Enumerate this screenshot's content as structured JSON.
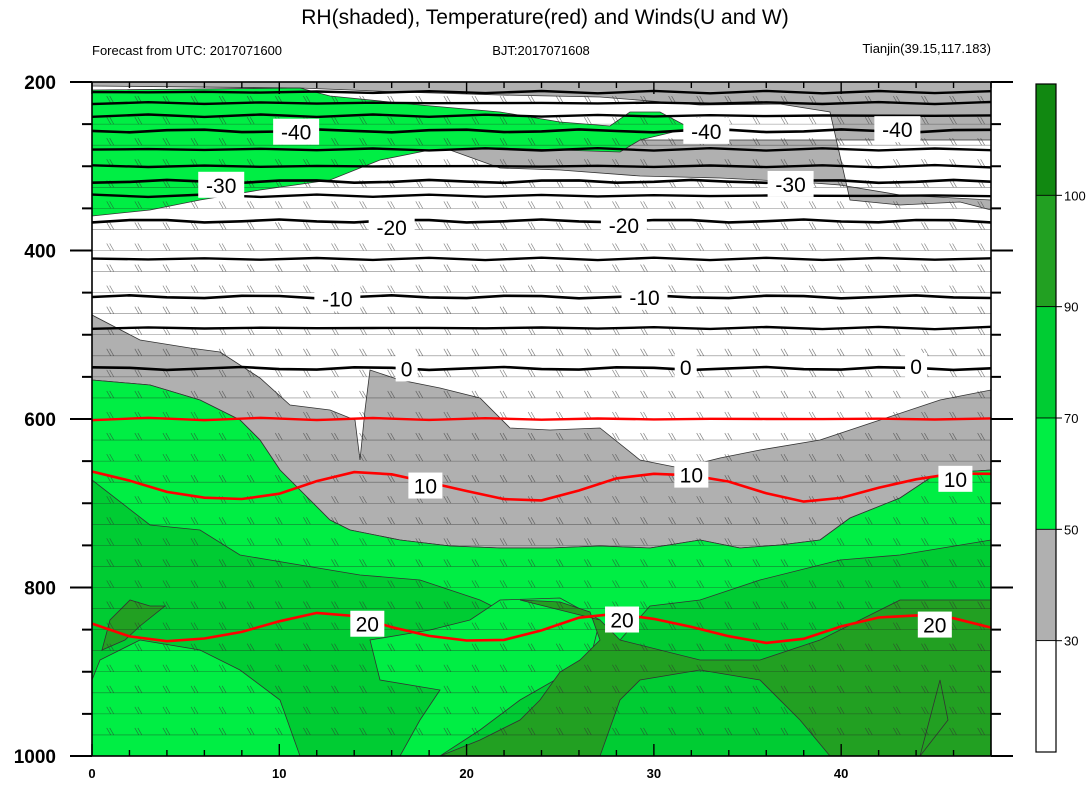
{
  "chart_data": {
    "type": "contour",
    "title": "RH(shaded), Temperature(red) and Winds(U and W)",
    "subtitle_left": "Forecast from UTC: 2017071600",
    "subtitle_center": "BJT:2017071608",
    "subtitle_right": "Tianjin(39.15,117.183)",
    "x_range": [
      0,
      48
    ],
    "x_ticks": [
      0,
      10,
      20,
      30,
      40
    ],
    "y_range": [
      1000,
      200
    ],
    "y_ticks": [
      200,
      400,
      600,
      800,
      1000
    ],
    "colorbar": {
      "levels": [
        30,
        50,
        70,
        90,
        100
      ],
      "colors": [
        "#ffffff",
        "#b0b0b0",
        "#00ee44",
        "#00cc33",
        "#22a022",
        "#118811"
      ]
    },
    "temperature_contours": [
      {
        "label": "-40",
        "y": 258,
        "color": "#000000"
      },
      {
        "label": "-30",
        "y": 318,
        "color": "#000000"
      },
      {
        "label": "-20",
        "y": 365,
        "color": "#000000"
      },
      {
        "label": "-10",
        "y": 455,
        "color": "#000000"
      },
      {
        "label": "0",
        "y": 540,
        "color": "#000000"
      },
      {
        "label": "10",
        "y": 680,
        "color": "#ff0000"
      },
      {
        "label": "20",
        "y": 848,
        "color": "#ff0000"
      }
    ],
    "contour_labels": [
      {
        "text": "-40",
        "x": 10.9,
        "p": 259
      },
      {
        "text": "-40",
        "x": 32.8,
        "p": 258
      },
      {
        "text": "-40",
        "x": 43.0,
        "p": 256
      },
      {
        "text": "-30",
        "x": 6.9,
        "p": 322
      },
      {
        "text": "-30",
        "x": 37.3,
        "p": 321
      },
      {
        "text": "-20",
        "x": 16.0,
        "p": 372
      },
      {
        "text": "-20",
        "x": 28.4,
        "p": 370
      },
      {
        "text": "-10",
        "x": 13.1,
        "p": 457
      },
      {
        "text": "-10",
        "x": 29.5,
        "p": 455
      },
      {
        "text": "0",
        "x": 16.8,
        "p": 540
      },
      {
        "text": "0",
        "x": 31.7,
        "p": 538
      },
      {
        "text": "0",
        "x": 44.0,
        "p": 537
      },
      {
        "text": "10",
        "x": 17.8,
        "p": 679
      },
      {
        "text": "10",
        "x": 32.0,
        "p": 666
      },
      {
        "text": "10",
        "x": 46.1,
        "p": 671
      },
      {
        "text": "20",
        "x": 14.7,
        "p": 843
      },
      {
        "text": "20",
        "x": 28.3,
        "p": 838
      },
      {
        "text": "20",
        "x": 45.0,
        "p": 844
      }
    ]
  }
}
